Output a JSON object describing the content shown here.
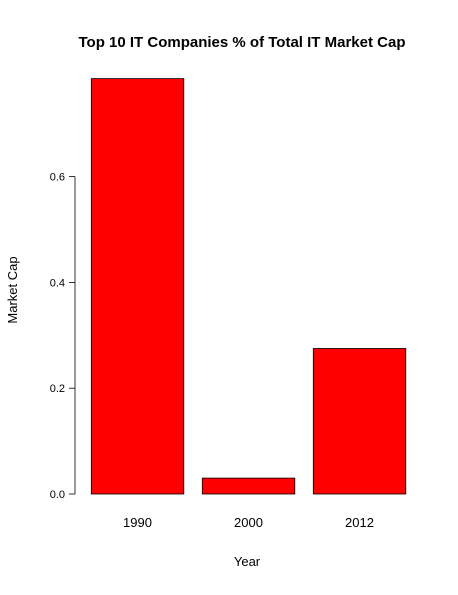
{
  "chart_data": {
    "type": "bar",
    "title": "Top 10 IT Companies % of Total IT Market Cap",
    "xlabel": "Year",
    "ylabel": "Market Cap",
    "categories": [
      "1990",
      "2000",
      "2012"
    ],
    "values": [
      0.785,
      0.03,
      0.275
    ],
    "ylim": [
      0,
      0.79
    ],
    "yticks": [
      "0.0",
      "0.2",
      "0.4",
      "0.6"
    ],
    "grid": false,
    "legend": "none",
    "bar_color": "#ff0000",
    "bar_border_color": "#000000"
  }
}
